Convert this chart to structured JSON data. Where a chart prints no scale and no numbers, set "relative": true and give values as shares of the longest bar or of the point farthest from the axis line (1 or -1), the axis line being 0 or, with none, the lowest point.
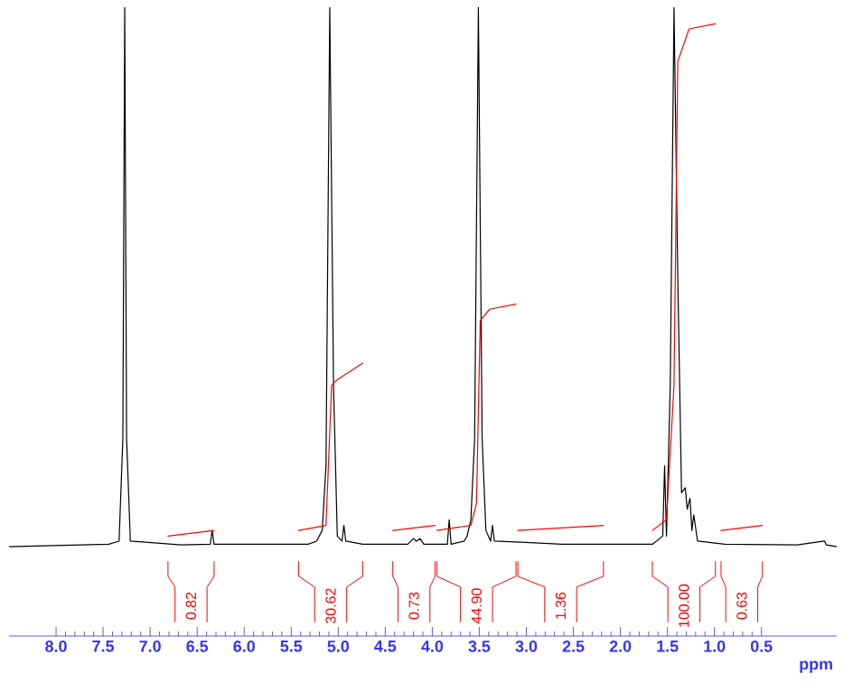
{
  "chart_data": {
    "type": "line",
    "relative": true,
    "xlabel": "ppm",
    "x": [
      8.5,
      7.44,
      7.33,
      7.29,
      7.27,
      7.25,
      7.21,
      6.67,
      6.36,
      6.34,
      6.32,
      5.32,
      5.23,
      5.17,
      5.13,
      5.09,
      5.05,
      5.01,
      4.96,
      4.94,
      4.92,
      4.74,
      4.26,
      4.2,
      4.17,
      4.13,
      4.09,
      3.84,
      3.82,
      3.8,
      3.66,
      3.63,
      3.59,
      3.55,
      3.51,
      3.47,
      3.43,
      3.38,
      3.36,
      3.34,
      3.01,
      2.62,
      2.24,
      1.66,
      1.55,
      1.53,
      1.51,
      1.47,
      1.43,
      1.39,
      1.35,
      1.31,
      1.29,
      1.26,
      1.24,
      1.22,
      1.18,
      0.89,
      0.12,
      -0.17,
      -0.19,
      -0.3
    ],
    "series": [
      {
        "color": "#000000",
        "values": [
          0.142,
          0.146,
          0.151,
          0.314,
          1,
          0.314,
          0.151,
          0.145,
          0.146,
          0.168,
          0.146,
          0.146,
          0.151,
          0.168,
          0.271,
          1,
          0.399,
          0.159,
          0.151,
          0.176,
          0.151,
          0.146,
          0.146,
          0.155,
          0.151,
          0.155,
          0.146,
          0.146,
          0.185,
          0.146,
          0.151,
          0.159,
          0.185,
          0.314,
          1,
          0.314,
          0.168,
          0.151,
          0.176,
          0.151,
          0.149,
          0.146,
          0.146,
          0.146,
          0.159,
          0.271,
          0.159,
          0.399,
          1,
          0.571,
          0.228,
          0.236,
          0.202,
          0.219,
          0.168,
          0.193,
          0.151,
          0.146,
          0.145,
          0.151,
          0.145,
          0.142
        ]
      },
      {
        "color": "#ff0000",
        "x": [
          6.81,
          6.32,
          null,
          5.42,
          5.13,
          5.07,
          5.01,
          4.74,
          null,
          4.42,
          3.97,
          null,
          3.95,
          3.59,
          3.53,
          3.49,
          3.39,
          3.11,
          null,
          3.09,
          2.18,
          null,
          1.66,
          1.51,
          1.43,
          1.39,
          1.27,
          0.99,
          null,
          0.93,
          0.49
        ],
        "values": [
          0.159,
          0.168,
          null,
          0.168,
          0.176,
          0.399,
          0.408,
          0.434,
          null,
          0.168,
          0.176,
          null,
          0.168,
          0.176,
          0.211,
          0.502,
          0.52,
          0.528,
          null,
          0.168,
          0.176,
          null,
          0.168,
          0.185,
          0.399,
          0.914,
          0.966,
          0.974,
          null,
          0.168,
          0.176
        ]
      }
    ],
    "xlim": [
      8.5,
      -0.3
    ],
    "xticks": [
      {
        "value": 8,
        "label": "8.0"
      },
      {
        "value": 7.5,
        "label": "7.5"
      },
      {
        "value": 7,
        "label": "7.0"
      },
      {
        "value": 6.5,
        "label": "6.5"
      },
      {
        "value": 6,
        "label": "6.0"
      },
      {
        "value": 5.5,
        "label": "5.5"
      },
      {
        "value": 5,
        "label": "5.0"
      },
      {
        "value": 4.5,
        "label": "4.5"
      },
      {
        "value": 4,
        "label": "4.0"
      },
      {
        "value": 3.5,
        "label": "3.5"
      },
      {
        "value": 3,
        "label": "3.0"
      },
      {
        "value": 2.5,
        "label": "2.5"
      },
      {
        "value": 2,
        "label": "2.0"
      },
      {
        "value": 1.5,
        "label": "1.5"
      },
      {
        "value": 1,
        "label": "1.0"
      },
      {
        "value": 0.5,
        "label": "0.5"
      }
    ],
    "annotations": [
      "0.82",
      "30.62",
      "0.73",
      "44.90",
      "1.36",
      "100.00",
      "0.63"
    ]
  }
}
